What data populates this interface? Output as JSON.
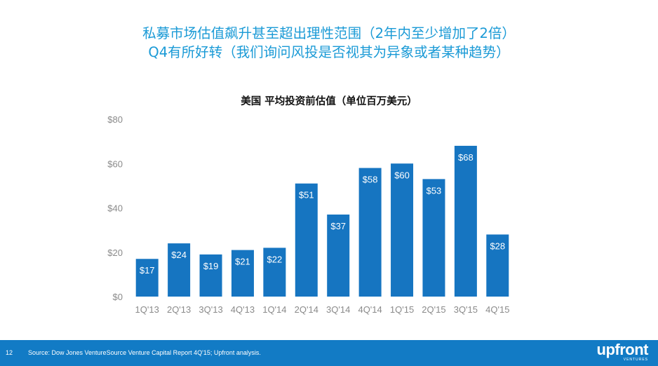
{
  "headline": {
    "line1": "私募市场估值飙升甚至超出理性范围（2年内至少增加了2倍）",
    "line2": "Q4有所好转（我们询问风投是否视其为异象或者某种趋势）"
  },
  "chart_data": {
    "type": "bar",
    "title": "美国 平均投资前估值（单位百万美元）",
    "categories": [
      "1Q'13",
      "2Q'13",
      "3Q'13",
      "4Q'13",
      "1Q'14",
      "2Q'14",
      "3Q'14",
      "4Q'14",
      "1Q'15",
      "2Q'15",
      "3Q'15",
      "4Q'15"
    ],
    "values": [
      17,
      24,
      19,
      21,
      22,
      51,
      37,
      58,
      60,
      53,
      68,
      28
    ],
    "value_labels": [
      "$17",
      "$24",
      "$19",
      "$21",
      "$22",
      "$51",
      "$37",
      "$58",
      "$60",
      "$53",
      "$68",
      "$28"
    ],
    "ylim": [
      0,
      80
    ],
    "yticks": [
      0,
      20,
      40,
      60,
      80
    ],
    "ytick_labels": [
      "$0",
      "$20",
      "$40",
      "$60",
      "$80"
    ],
    "bar_color": "#1675c1",
    "grid": false
  },
  "footer": {
    "page_number": "12",
    "source": "Source: Dow Jones VentureSource Venture Capital Report 4Q'15; Upfront analysis.",
    "logo_text": "upfront",
    "logo_subtext": "VENTURES",
    "background_color": "#127bc5"
  }
}
